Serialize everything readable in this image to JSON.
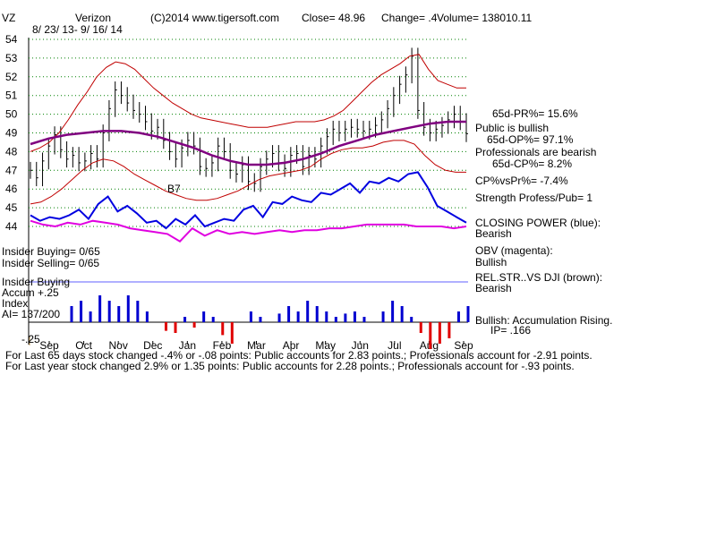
{
  "header": {
    "symbol": "VZ",
    "company": "Verizon",
    "site": "(C)2014 www.tigersoft.com",
    "close": "Close=  48.96",
    "change": "Change= .4",
    "volume": "Volume= 138010.11",
    "dates": "8/ 23/ 13-  9/ 16/ 14"
  },
  "side_text": {
    "pr": "65d-PR%= 15.6%",
    "public_bullish": "Public is bullish",
    "op": "65d-OP%= 97.1%",
    "prof_bearish": "Professionals are bearish",
    "cp": "65d-CP%= 8.2%",
    "cpvspr": "CP%vsPr%= -7.4%",
    "strength": "Strength Profess/Pub= 1",
    "closing_power": "CLOSING POWER (blue):",
    "cp_state": "Bearish",
    "obv": "OBV (magenta):",
    "obv_state": "Bullish",
    "relstr": "REL.STR..VS DJI (brown):",
    "relstr_state": "Bearish",
    "accum": "Bullish: Accumulation Rising.",
    "ip": "IP=  .166"
  },
  "left_text": {
    "ins_buying": "Insider Buying= 0/65",
    "ins_selling": "Insider Selling= 0/65",
    "ins_buying2": "Insider Buying",
    "accum": "Accum   +.25",
    "index": "Index",
    "ai": "AI= 137/200",
    "neg25": "-.25",
    "b7": "B7"
  },
  "footer": {
    "line1": "For Last 65 days stock changed  -.4% or -.08 points:  Public accounts for  2.83 points.;  Professionals account for -2.91 points.",
    "line2": "For Last year stock changed  2.9% or  1.35 points:  Public accounts for  2.28 points.;  Professionals account for -.93 points."
  },
  "colors": {
    "price": "#000000",
    "bands": "#c00000",
    "ma": "#800080",
    "closing_power": "#0000e0",
    "obv": "#e000e0",
    "accum_pos": "#0000d0",
    "accum_neg": "#e00000",
    "grid": "#008000"
  },
  "chart_data": {
    "type": "line",
    "y_ticks": [
      54,
      53,
      52,
      51,
      50,
      49,
      48,
      47,
      46,
      45,
      44
    ],
    "ylim": [
      43.6,
      54.2
    ],
    "x_months": [
      "Sep",
      "Oct",
      "Nov",
      "Dec",
      "Jan",
      "Feb",
      "Mar",
      "Apr",
      "May",
      "Jun",
      "Jul",
      "Aug",
      "Sep"
    ],
    "price": [
      47.0,
      46.6,
      47.5,
      48.3,
      48.9,
      48.1,
      47.6,
      47.8,
      47.4,
      47.5,
      47.9,
      47.6,
      49.0,
      50.3,
      51.3,
      51.0,
      50.6,
      50.2,
      50.0,
      49.6,
      49.1,
      49.3,
      48.6,
      48.0,
      47.6,
      48.2,
      48.6,
      48.3,
      47.2,
      47.1,
      47.4,
      48.3,
      48.0,
      47.0,
      46.8,
      47.3,
      46.4,
      46.3,
      47.2,
      47.6,
      47.9,
      47.4,
      47.1,
      47.8,
      47.9,
      47.2,
      47.8,
      47.6,
      48.3,
      48.8,
      49.2,
      49.0,
      49.2,
      49.3,
      49.2,
      49.1,
      49.2,
      49.4,
      49.7,
      50.3,
      51.0,
      51.6,
      52.1,
      53.1,
      50.2,
      49.3,
      49.0,
      49.2,
      49.4,
      49.7,
      50.0,
      49.6,
      48.96
    ],
    "upper_band": [
      48.0,
      48.2,
      48.5,
      49.0,
      49.7,
      50.5,
      51.2,
      52.0,
      52.5,
      52.8,
      52.7,
      52.4,
      51.9,
      51.4,
      51.0,
      50.6,
      50.3,
      50.0,
      49.8,
      49.7,
      49.6,
      49.5,
      49.4,
      49.3,
      49.3,
      49.3,
      49.4,
      49.5,
      49.6,
      49.6,
      49.6,
      49.7,
      49.9,
      50.2,
      50.7,
      51.2,
      51.7,
      52.1,
      52.4,
      52.7,
      53.1,
      53.2,
      52.4,
      51.8,
      51.6,
      51.4,
      51.4
    ],
    "lower_band": [
      45.2,
      45.3,
      45.6,
      46.0,
      46.5,
      47.0,
      47.4,
      47.6,
      47.5,
      47.2,
      46.8,
      46.5,
      46.2,
      45.9,
      45.7,
      45.5,
      45.4,
      45.4,
      45.5,
      45.7,
      45.9,
      46.2,
      46.5,
      46.7,
      46.8,
      46.9,
      47.0,
      47.2,
      47.6,
      47.9,
      48.1,
      48.2,
      48.2,
      48.3,
      48.5,
      48.6,
      48.6,
      48.4,
      47.8,
      47.3,
      47.0,
      46.9,
      46.9
    ],
    "ma_65": [
      48.4,
      48.7,
      48.9,
      49.0,
      49.1,
      49.1,
      49.0,
      48.8,
      48.5,
      48.2,
      47.8,
      47.5,
      47.3,
      47.3,
      47.4,
      47.6,
      47.9,
      48.3,
      48.6,
      48.9,
      49.1,
      49.3,
      49.5,
      49.6,
      49.6
    ],
    "closing_power": [
      44.6,
      44.3,
      44.5,
      44.4,
      44.6,
      44.9,
      44.4,
      45.2,
      45.6,
      44.8,
      45.1,
      44.7,
      44.2,
      44.3,
      43.9,
      44.4,
      44.1,
      44.6,
      44.0,
      44.2,
      44.4,
      44.3,
      44.9,
      45.1,
      44.5,
      45.3,
      45.2,
      45.6,
      45.4,
      45.3,
      45.8,
      45.7,
      46.0,
      46.3,
      45.8,
      46.4,
      46.3,
      46.6,
      46.4,
      46.8,
      46.9,
      46.1,
      45.1,
      44.8,
      44.5,
      44.2
    ],
    "obv": [
      44.3,
      44.1,
      44.0,
      44.2,
      44.1,
      44.3,
      44.2,
      44.1,
      43.9,
      43.8,
      43.7,
      43.6,
      43.2,
      43.9,
      43.5,
      43.8,
      43.6,
      43.7,
      43.6,
      43.7,
      43.8,
      43.7,
      43.8,
      43.8,
      43.9,
      43.9,
      44.0,
      44.1,
      44.1,
      44.1,
      44.1,
      44.0,
      44.0,
      44.0,
      43.9,
      44.0
    ],
    "accumulation": [
      0.15,
      0.2,
      0.1,
      0.25,
      0.2,
      0.15,
      0.25,
      0.2,
      0.1,
      0.0,
      -0.08,
      -0.1,
      0.05,
      -0.05,
      0.1,
      0.05,
      -0.12,
      -0.2,
      0.0,
      0.1,
      0.05,
      0.0,
      0.08,
      0.15,
      0.1,
      0.2,
      0.15,
      0.1,
      0.05,
      0.08,
      0.1,
      0.05,
      0.0,
      0.1,
      0.2,
      0.15,
      0.05,
      -0.1,
      -0.25,
      -0.2,
      -0.15,
      0.1,
      0.15
    ]
  }
}
